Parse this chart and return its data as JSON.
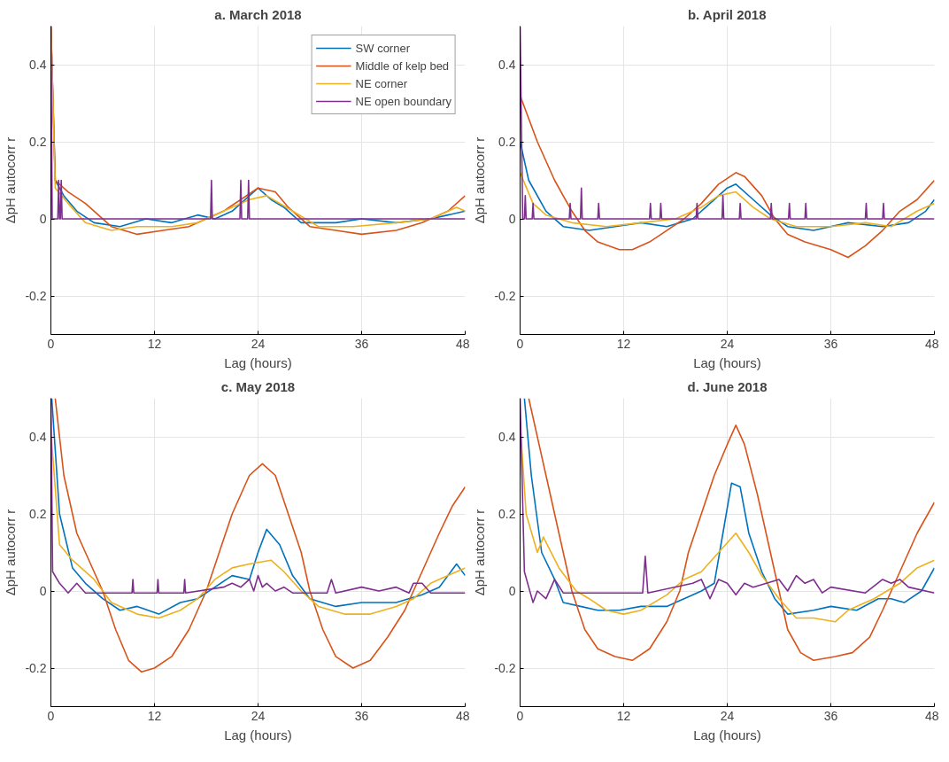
{
  "chart_data": [
    {
      "type": "line",
      "title": "a. March 2018",
      "xlabel": "Lag (hours)",
      "ylabel": "ΔpH autocorr r",
      "xlim": [
        0,
        48
      ],
      "ylim": [
        -0.3,
        0.5
      ],
      "xticks": [
        0,
        12,
        24,
        36,
        48
      ],
      "yticks": [
        -0.2,
        0,
        0.2,
        0.4
      ],
      "grid": true,
      "legend": "top right",
      "line_style": "solid",
      "series": [
        {
          "name": "SW corner",
          "color": "#0072bd",
          "x": [
            0,
            0.5,
            1.5,
            3,
            5,
            8,
            11,
            14,
            17,
            19,
            21,
            23,
            24,
            25.5,
            27,
            29,
            33,
            36,
            40,
            44,
            46,
            48
          ],
          "values": [
            0.5,
            0.1,
            0.06,
            0.02,
            -0.01,
            -0.02,
            0,
            -0.01,
            0.01,
            0,
            0.02,
            0.06,
            0.08,
            0.05,
            0.03,
            -0.01,
            -0.01,
            0,
            -0.01,
            0,
            0.01,
            0.02
          ]
        },
        {
          "name": "Middle of kelp bed",
          "color": "#d95319",
          "x": [
            0,
            0.5,
            2,
            4,
            7,
            10,
            13,
            16,
            18,
            20,
            22,
            24,
            26,
            27.5,
            30,
            33,
            36,
            40,
            43,
            46,
            48
          ],
          "values": [
            0.5,
            0.1,
            0.07,
            0.04,
            -0.02,
            -0.04,
            -0.03,
            -0.02,
            0,
            0.02,
            0.05,
            0.08,
            0.07,
            0.03,
            -0.02,
            -0.03,
            -0.04,
            -0.03,
            -0.01,
            0.02,
            0.06
          ]
        },
        {
          "name": "NE corner",
          "color": "#edb120",
          "x": [
            0,
            0.5,
            2,
            4,
            7,
            10,
            14,
            17,
            20,
            23,
            25,
            28,
            31,
            35,
            40,
            44,
            47,
            48
          ],
          "values": [
            0.5,
            0.08,
            0.04,
            -0.01,
            -0.03,
            -0.02,
            -0.02,
            -0.01,
            0.02,
            0.05,
            0.06,
            0.02,
            -0.02,
            -0.02,
            -0.01,
            0,
            0.03,
            0.02
          ]
        },
        {
          "name": "NE open boundary",
          "color": "#7e2f8e",
          "x": [
            0,
            0.15,
            0.8,
            0.9,
            1.0,
            1.1,
            1.2,
            1.3,
            18.5,
            18.6,
            18.7,
            21.9,
            22.0,
            22.1,
            22.8,
            22.9,
            23.0,
            48
          ],
          "values": [
            0.5,
            0,
            0,
            0.1,
            0,
            0,
            0.1,
            0,
            0,
            0.1,
            0,
            0,
            0.1,
            0,
            0,
            0.1,
            0,
            0
          ]
        }
      ]
    },
    {
      "type": "line",
      "title": "b. April 2018",
      "xlabel": "Lag (hours)",
      "ylabel": "ΔpH autocorr r",
      "xlim": [
        0,
        48
      ],
      "ylim": [
        -0.3,
        0.5
      ],
      "xticks": [
        0,
        12,
        24,
        36,
        48
      ],
      "yticks": [
        -0.2,
        0,
        0.2,
        0.4
      ],
      "grid": true,
      "line_style": "solid",
      "series": [
        {
          "color": "#0072bd",
          "x": [
            0,
            1,
            3,
            5,
            8,
            11,
            14,
            17,
            20,
            22,
            24,
            25,
            27,
            29,
            31,
            34,
            38,
            42,
            45,
            47,
            48
          ],
          "values": [
            0.2,
            0.1,
            0.02,
            -0.02,
            -0.03,
            -0.02,
            -0.01,
            -0.02,
            0,
            0.04,
            0.08,
            0.09,
            0.05,
            0.01,
            -0.02,
            -0.03,
            -0.01,
            -0.02,
            -0.01,
            0.02,
            0.05
          ]
        },
        {
          "color": "#d95319",
          "x": [
            0,
            2,
            4,
            6,
            7.5,
            9,
            11.5,
            13,
            15,
            17,
            19,
            21,
            23,
            25,
            26,
            28,
            29.5,
            31,
            33,
            36,
            38,
            40,
            42,
            44,
            46,
            48
          ],
          "values": [
            0.32,
            0.2,
            0.1,
            0.02,
            -0.03,
            -0.06,
            -0.08,
            -0.08,
            -0.06,
            -0.03,
            0,
            0.04,
            0.09,
            0.12,
            0.11,
            0.06,
            0,
            -0.04,
            -0.06,
            -0.08,
            -0.1,
            -0.07,
            -0.03,
            0.02,
            0.05,
            0.1
          ]
        },
        {
          "color": "#edb120",
          "x": [
            0,
            1.5,
            3,
            6,
            10,
            14,
            18,
            21,
            23,
            25,
            27,
            29,
            32,
            36,
            40,
            43,
            46,
            48
          ],
          "values": [
            0.12,
            0.04,
            0.01,
            -0.01,
            -0.02,
            -0.01,
            0,
            0.03,
            0.06,
            0.07,
            0.03,
            0,
            -0.02,
            -0.02,
            -0.01,
            -0.02,
            0.02,
            0.04
          ]
        },
        {
          "color": "#7e2f8e",
          "x": [
            0,
            0.3,
            0.5,
            0.6,
            0.7,
            1.4,
            1.5,
            1.6,
            5.7,
            5.8,
            5.9,
            7.0,
            7.1,
            7.2,
            9.0,
            9.1,
            9.2,
            15.0,
            15.1,
            15.2,
            16.2,
            16.3,
            16.4,
            20.4,
            20.5,
            20.6,
            23.4,
            23.5,
            23.6,
            25.4,
            25.5,
            25.6,
            29.0,
            29.1,
            29.2,
            31.1,
            31.2,
            31.3,
            33.0,
            33.1,
            33.2,
            40.0,
            40.1,
            40.2,
            42.0,
            42.1,
            42.2,
            48
          ],
          "values": [
            0.5,
            0,
            0,
            0.06,
            0,
            0,
            0.04,
            0,
            0,
            0.04,
            0,
            0,
            0.08,
            0,
            0,
            0.04,
            0,
            0,
            0.04,
            0,
            0,
            0.04,
            0,
            0,
            0.04,
            0,
            0,
            0.06,
            0,
            0,
            0.04,
            0,
            0,
            0.04,
            0,
            0,
            0.04,
            0,
            0,
            0.04,
            0,
            0,
            0.04,
            0,
            0,
            0.04,
            0,
            0
          ]
        }
      ]
    },
    {
      "type": "line",
      "title": "c. May 2018",
      "xlabel": "Lag (hours)",
      "ylabel": "ΔpH autocorr r",
      "xlim": [
        0,
        48
      ],
      "ylim": [
        -0.3,
        0.5
      ],
      "xticks": [
        0,
        12,
        24,
        36,
        48
      ],
      "yticks": [
        -0.2,
        0,
        0.2,
        0.4
      ],
      "grid": true,
      "line_style": "solid",
      "series": [
        {
          "color": "#0072bd",
          "x": [
            0.1,
            1,
            2.5,
            4,
            6,
            8,
            10,
            12.5,
            15,
            17,
            19,
            21,
            23,
            24,
            25,
            26.5,
            28,
            30,
            33,
            36,
            40,
            43,
            45,
            47,
            48
          ],
          "values": [
            0.5,
            0.2,
            0.06,
            0.02,
            -0.02,
            -0.05,
            -0.04,
            -0.06,
            -0.03,
            -0.02,
            0.01,
            0.04,
            0.03,
            0.1,
            0.16,
            0.12,
            0.04,
            -0.02,
            -0.04,
            -0.03,
            -0.03,
            -0.01,
            0.01,
            0.07,
            0.04
          ]
        },
        {
          "color": "#d95319",
          "x": [
            0.5,
            1.5,
            3,
            6,
            7.5,
            9,
            10.5,
            12,
            14,
            16,
            18,
            19.5,
            21,
            23,
            24.5,
            26,
            27.5,
            29,
            30,
            31.5,
            33,
            35,
            37,
            39,
            41,
            43,
            45,
            46.5,
            48
          ],
          "values": [
            0.5,
            0.3,
            0.15,
            0,
            -0.1,
            -0.18,
            -0.21,
            -0.2,
            -0.17,
            -0.1,
            0,
            0.1,
            0.2,
            0.3,
            0.33,
            0.3,
            0.2,
            0.1,
            0,
            -0.1,
            -0.17,
            -0.2,
            -0.18,
            -0.12,
            -0.05,
            0.05,
            0.15,
            0.22,
            0.27
          ]
        },
        {
          "color": "#edb120",
          "x": [
            0.05,
            1,
            2.5,
            5,
            7,
            10,
            12.5,
            15,
            17,
            19,
            21,
            23,
            25.5,
            27,
            29,
            31,
            34,
            37,
            40,
            42,
            44,
            46,
            48
          ],
          "values": [
            0.4,
            0.12,
            0.08,
            0.03,
            -0.03,
            -0.06,
            -0.07,
            -0.05,
            -0.02,
            0.03,
            0.06,
            0.07,
            0.08,
            0.05,
            0,
            -0.04,
            -0.06,
            -0.06,
            -0.04,
            -0.02,
            0.02,
            0.04,
            0.06
          ]
        },
        {
          "color": "#7e2f8e",
          "x": [
            0,
            0.2,
            1,
            2,
            3,
            4,
            9.4,
            9.5,
            9.6,
            12.3,
            12.4,
            12.5,
            15.4,
            15.5,
            15.6,
            20,
            21,
            22,
            23,
            23.5,
            24,
            24.5,
            25,
            26,
            27,
            28,
            32,
            32.5,
            33,
            36,
            38,
            40,
            41.5,
            42,
            43,
            44,
            48
          ],
          "values": [
            0.5,
            0.05,
            0.02,
            -0.005,
            0.02,
            -0.005,
            -0.005,
            0.03,
            -0.005,
            -0.005,
            0.03,
            -0.005,
            -0.005,
            0.03,
            -0.005,
            0.01,
            0.02,
            0.01,
            0.03,
            0,
            0.04,
            0.01,
            0.02,
            0,
            0.01,
            -0.005,
            -0.005,
            0.03,
            -0.005,
            0.01,
            0,
            0.01,
            -0.005,
            0.02,
            0.02,
            -0.005,
            -0.005
          ]
        }
      ]
    },
    {
      "type": "line",
      "title": "d. June 2018",
      "xlabel": "Lag (hours)",
      "ylabel": "ΔpH autocorr r",
      "xlim": [
        0,
        48
      ],
      "ylim": [
        -0.3,
        0.5
      ],
      "xticks": [
        0,
        12,
        24,
        36,
        48
      ],
      "yticks": [
        -0.2,
        0,
        0.2,
        0.4
      ],
      "grid": true,
      "line_style": "solid",
      "series": [
        {
          "color": "#0072bd",
          "x": [
            0.5,
            1.3,
            2.5,
            4,
            5,
            7,
            9,
            11.5,
            14,
            17,
            19,
            21,
            22.5,
            23.5,
            24.5,
            25.5,
            26.5,
            28,
            29.5,
            31,
            34,
            36,
            39,
            41.5,
            43,
            44.5,
            46.5,
            48
          ],
          "values": [
            0.5,
            0.3,
            0.1,
            0.03,
            -0.03,
            -0.04,
            -0.05,
            -0.05,
            -0.04,
            -0.04,
            -0.02,
            0,
            0.02,
            0.15,
            0.28,
            0.27,
            0.15,
            0.05,
            -0.02,
            -0.06,
            -0.05,
            -0.04,
            -0.05,
            -0.02,
            -0.02,
            -0.03,
            0,
            0.06
          ]
        },
        {
          "color": "#d95319",
          "x": [
            1,
            3,
            4.5,
            6,
            7.5,
            9,
            11,
            13,
            15,
            17,
            18.5,
            19.5,
            21,
            22.5,
            24,
            25,
            26,
            27.5,
            29,
            30,
            31,
            32.5,
            34,
            36.5,
            38.5,
            40.5,
            42,
            44,
            46,
            48
          ],
          "values": [
            0.5,
            0.3,
            0.15,
            0,
            -0.1,
            -0.15,
            -0.17,
            -0.18,
            -0.15,
            -0.08,
            0,
            0.1,
            0.2,
            0.3,
            0.38,
            0.43,
            0.38,
            0.25,
            0.1,
            0,
            -0.1,
            -0.16,
            -0.18,
            -0.17,
            -0.16,
            -0.12,
            -0.05,
            0.05,
            0.15,
            0.23
          ]
        },
        {
          "color": "#edb120",
          "x": [
            0.1,
            0.7,
            2,
            2.7,
            4.5,
            6.5,
            8,
            10,
            12,
            14,
            17,
            19,
            21,
            23,
            25,
            26.5,
            28,
            30,
            32,
            34,
            36.5,
            38,
            41,
            44,
            46,
            48
          ],
          "values": [
            0.4,
            0.2,
            0.1,
            0.14,
            0.06,
            0,
            -0.02,
            -0.05,
            -0.06,
            -0.05,
            -0.01,
            0.03,
            0.05,
            0.1,
            0.15,
            0.1,
            0.04,
            -0.02,
            -0.07,
            -0.07,
            -0.08,
            -0.05,
            -0.02,
            0.02,
            0.06,
            0.08
          ]
        },
        {
          "color": "#7e2f8e",
          "x": [
            0,
            0.5,
            1,
            1.5,
            2,
            3,
            4,
            5,
            6,
            14.2,
            14.5,
            14.8,
            20,
            21,
            22,
            23,
            24,
            25,
            26,
            27,
            30,
            31,
            32,
            33,
            34,
            35,
            36,
            40,
            42,
            43,
            44,
            45,
            48
          ],
          "values": [
            0.5,
            0.05,
            0.01,
            -0.03,
            0,
            -0.02,
            0.03,
            -0.005,
            -0.005,
            -0.005,
            0.09,
            -0.005,
            0.02,
            0.03,
            -0.02,
            0.03,
            0.02,
            -0.01,
            0.02,
            0.01,
            0.03,
            0,
            0.04,
            0.02,
            0.03,
            -0.005,
            0.01,
            -0.005,
            0.03,
            0.02,
            0.03,
            0.01,
            -0.005
          ]
        }
      ]
    }
  ]
}
